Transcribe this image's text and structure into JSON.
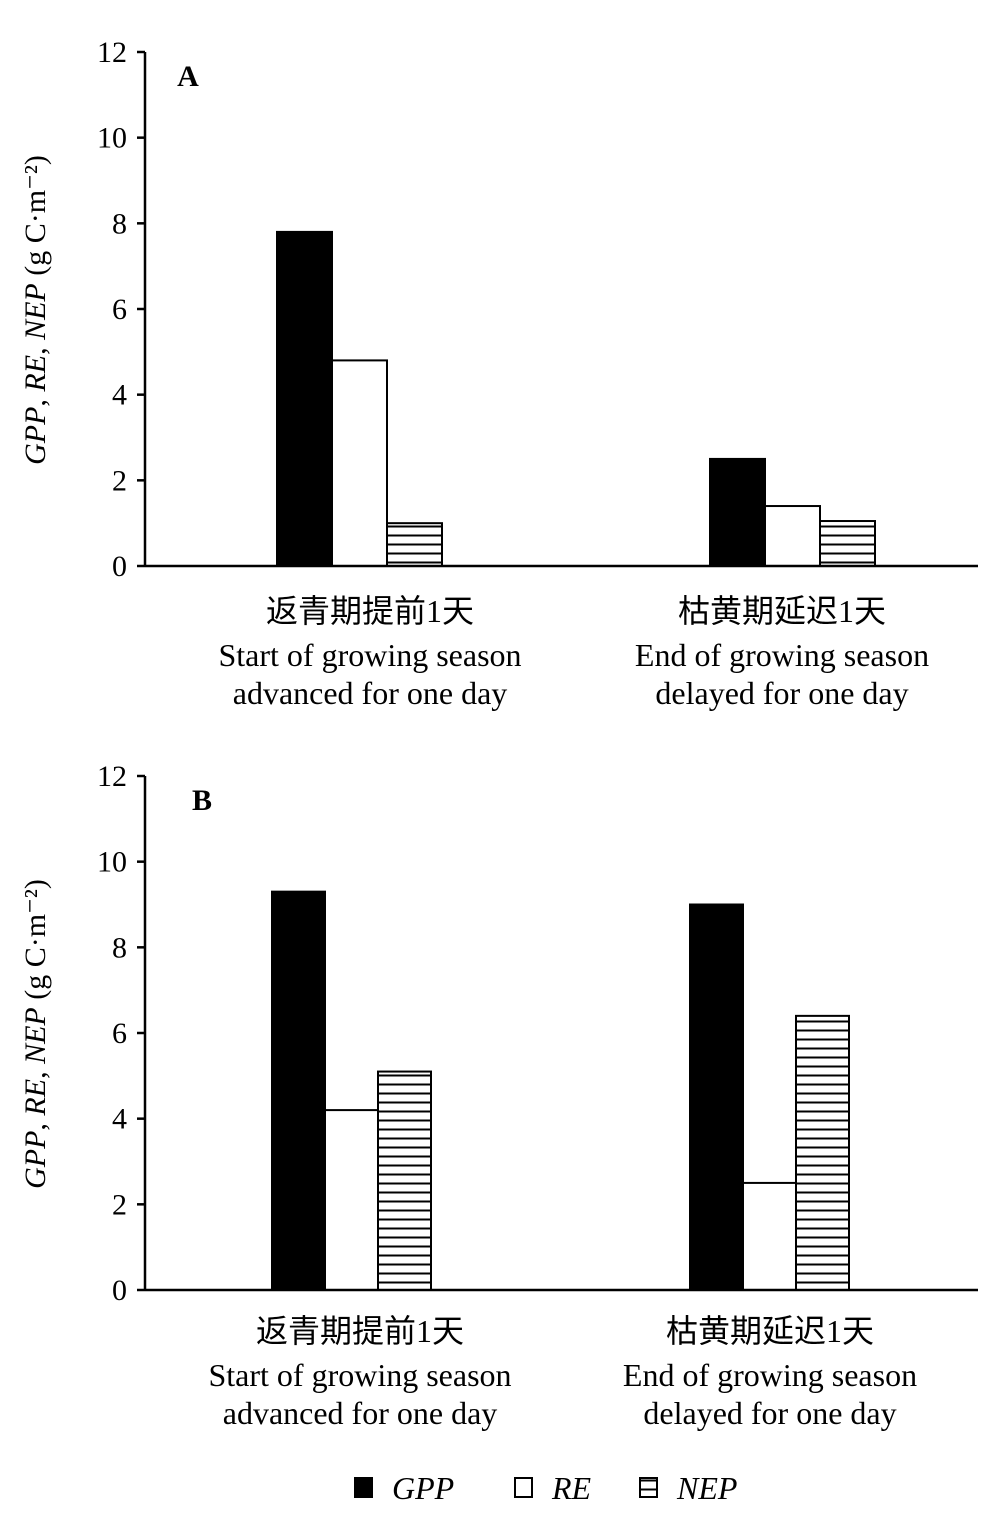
{
  "chart_data": [
    {
      "type": "bar",
      "panel": "A",
      "ylabel": "GPP, RE, NEP (g C·m⁻²)",
      "ylim": [
        0,
        12
      ],
      "yticks": [
        "0",
        "2",
        "4",
        "6",
        "8",
        "10",
        "12"
      ],
      "categories": [
        [
          "返青期提前1天",
          "Start of growing season",
          "advanced for one day"
        ],
        [
          "枯黄期延迟1天",
          "End of growing season",
          "delayed for one day"
        ]
      ],
      "series": [
        {
          "name": "GPP",
          "values": [
            7.8,
            2.5
          ]
        },
        {
          "name": "RE",
          "values": [
            4.8,
            1.4
          ]
        },
        {
          "name": "NEP",
          "values": [
            1.0,
            1.05
          ]
        }
      ]
    },
    {
      "type": "bar",
      "panel": "B",
      "ylabel": "GPP, RE, NEP (g C·m⁻²)",
      "ylim": [
        0,
        12
      ],
      "yticks": [
        "0",
        "2",
        "4",
        "6",
        "8",
        "10",
        "12"
      ],
      "categories": [
        [
          "返青期提前1天",
          "Start of growing season",
          "advanced for one day"
        ],
        [
          "枯黄期延迟1天",
          "End of growing season",
          "delayed for one day"
        ]
      ],
      "series": [
        {
          "name": "GPP",
          "values": [
            9.3,
            9.0
          ]
        },
        {
          "name": "RE",
          "values": [
            4.2,
            2.5
          ]
        },
        {
          "name": "NEP",
          "values": [
            5.1,
            6.4
          ]
        }
      ]
    }
  ],
  "legend": {
    "position": "bottom",
    "items": [
      {
        "name": "GPP",
        "fill": "solid-black"
      },
      {
        "name": "RE",
        "fill": "white"
      },
      {
        "name": "NEP",
        "fill": "horizontal-lines"
      }
    ]
  },
  "colors": {
    "bar_solid": "#000000",
    "bar_outline": "#000000",
    "background": "#ffffff"
  }
}
